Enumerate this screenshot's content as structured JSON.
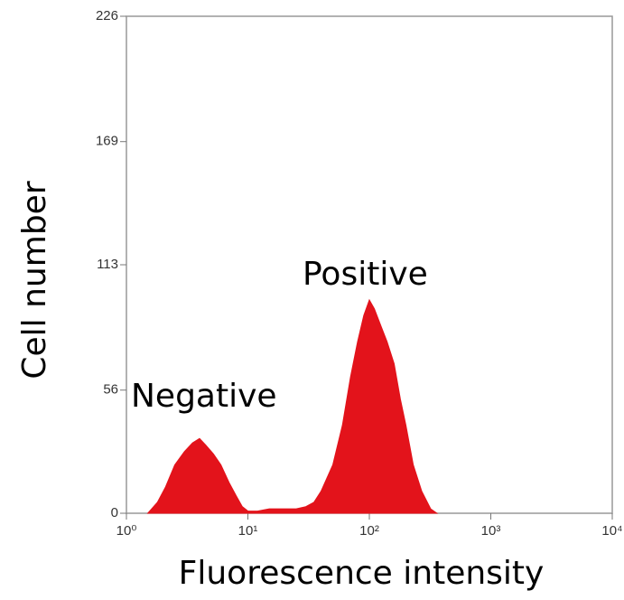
{
  "chart_data": {
    "type": "area",
    "x_label": "Fluorescence intensity",
    "y_label": "Cell number",
    "annotations": [
      "Negative",
      "Positive"
    ],
    "x": [
      1.5,
      1.8,
      2.1,
      2.5,
      3.0,
      3.5,
      4.0,
      4.5,
      5.2,
      6.0,
      7.0,
      8.0,
      9.0,
      10,
      12,
      15,
      20,
      25,
      30,
      35,
      40,
      50,
      60,
      70,
      80,
      90,
      100,
      110,
      125,
      140,
      160,
      180,
      200,
      230,
      270,
      320,
      360
    ],
    "values": [
      0,
      5,
      12,
      22,
      28,
      32,
      34,
      31,
      27,
      22,
      14,
      8,
      3,
      1,
      1,
      2,
      2,
      2,
      3,
      5,
      10,
      22,
      40,
      62,
      78,
      90,
      97,
      93,
      85,
      78,
      68,
      52,
      40,
      22,
      10,
      2,
      0
    ],
    "color": "#e3131b",
    "log_x": true,
    "xlim": [
      1,
      10000
    ],
    "xticks": [
      {
        "value": 1,
        "label": "10⁰"
      },
      {
        "value": 10,
        "label": "10¹"
      },
      {
        "value": 100,
        "label": "10²"
      },
      {
        "value": 1000,
        "label": "10³"
      },
      {
        "value": 10000,
        "label": "10⁴"
      }
    ],
    "ylim": [
      0,
      226
    ],
    "yticks": [
      0,
      56,
      113,
      169,
      226
    ]
  }
}
